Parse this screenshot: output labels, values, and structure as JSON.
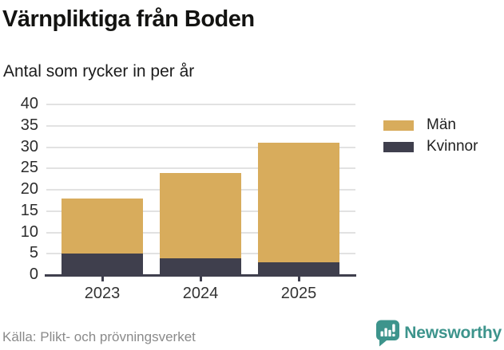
{
  "chart_data": {
    "type": "bar",
    "stacked": true,
    "title": "Värnpliktiga från Boden",
    "subtitle": "Antal som rycker in per år",
    "categories": [
      "2023",
      "2024",
      "2025"
    ],
    "series": [
      {
        "name": "Män",
        "color": "#D8AC5C",
        "values": [
          13,
          20,
          28
        ]
      },
      {
        "name": "Kvinnor",
        "color": "#3F3F4D",
        "values": [
          5,
          4,
          3
        ]
      }
    ],
    "stack_order_bottom_up": [
      "Kvinnor",
      "Män"
    ],
    "stack_totals": [
      18,
      24,
      31
    ],
    "xlabel": "",
    "ylabel": "",
    "ylim": [
      0,
      40
    ],
    "yticks": [
      0,
      5,
      10,
      15,
      20,
      25,
      30,
      35,
      40
    ],
    "grid": true,
    "legend_position": "right",
    "legend_labels": [
      "Män",
      "Kvinnor"
    ]
  },
  "footer": {
    "source": "Källa: Plikt- och prövningsverket",
    "brand": "Newsworthy"
  },
  "icons": {
    "logo": "newsworthy-speech-bubble-bar-chart-icon"
  },
  "colors": {
    "bar_men": "#D8AC5C",
    "bar_women": "#3F3F4D",
    "axis": "#3F3F4D",
    "gridline": "#E2E2E2",
    "brand_teal": "#3D948C",
    "source_text": "#8A8A8A",
    "background": "#FFFFFF"
  }
}
